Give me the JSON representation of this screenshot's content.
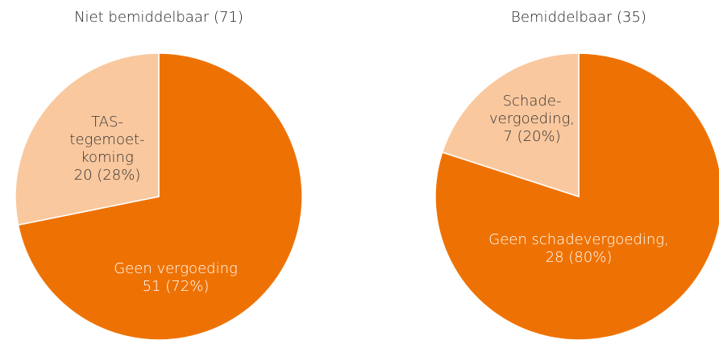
{
  "chart_data": [
    {
      "type": "pie",
      "title": "Niet bemiddelbaar (71)",
      "categories": [
        [
          "Geen vergoeding"
        ],
        [
          "TAS-",
          "tegemoet-",
          "koming"
        ]
      ],
      "values": [
        51,
        20
      ],
      "value_labels": [
        "51 (72%)",
        "20 (28%)"
      ],
      "colors": [
        "#ee7203",
        "#fac89e"
      ]
    },
    {
      "type": "pie",
      "title": "Bemiddelbaar (35)",
      "categories": [
        [
          "Geen schadevergoeding,"
        ],
        [
          "Schade-",
          "vergoeding,"
        ]
      ],
      "values": [
        28,
        7
      ],
      "value_labels": [
        "28 (80%)",
        "7 (20%)"
      ],
      "colors": [
        "#ee7203",
        "#fac89e"
      ]
    }
  ]
}
